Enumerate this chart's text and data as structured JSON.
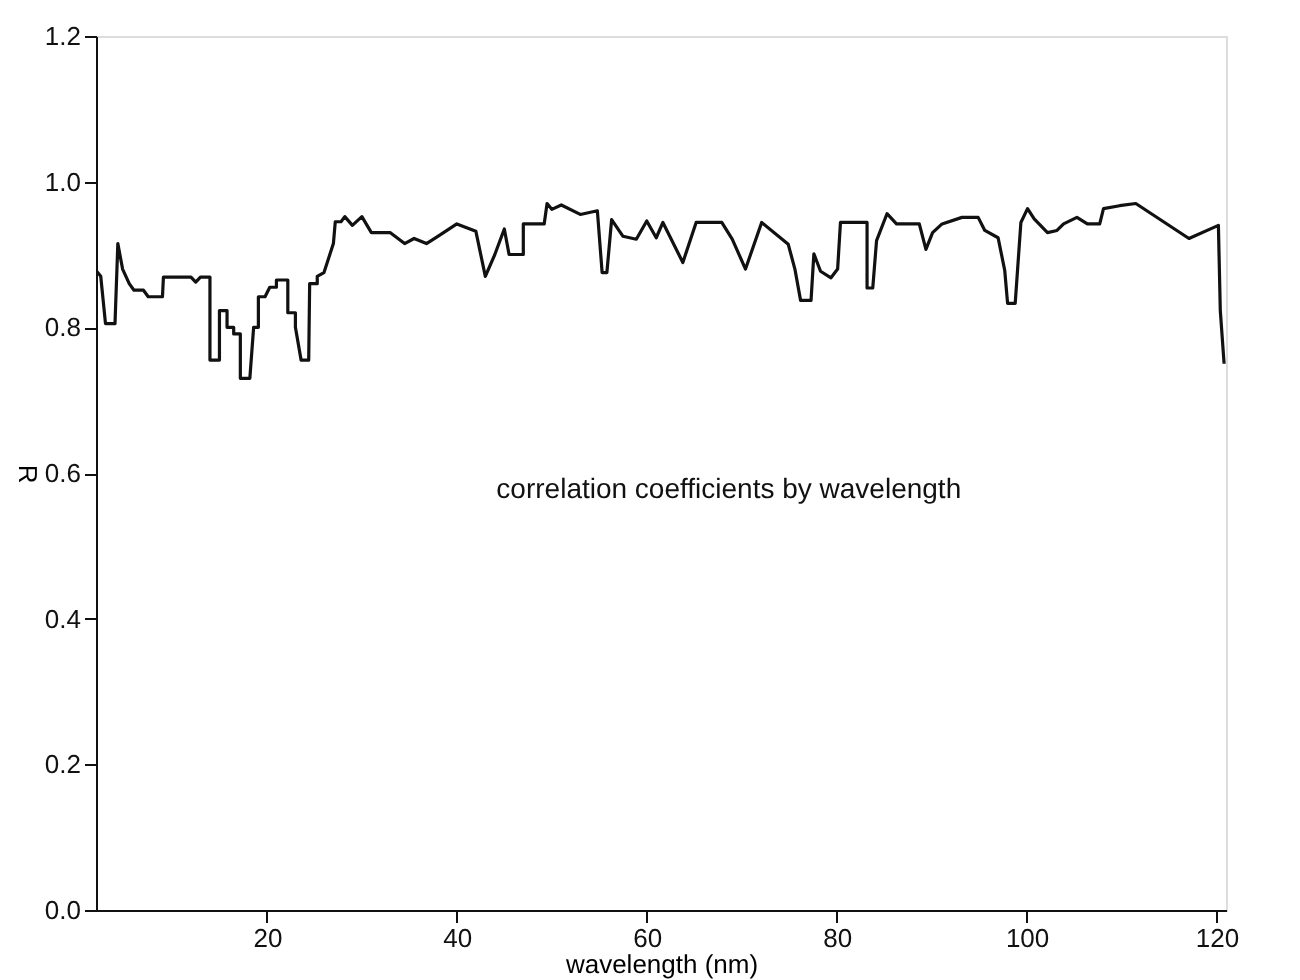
{
  "chart_data": {
    "type": "line",
    "xlabel": "wavelength (nm)",
    "ylabel": "R",
    "annotations": [
      "correlation coefficients by wavelength"
    ],
    "xlim": [
      2,
      121
    ],
    "ylim": [
      0,
      1.2
    ],
    "xticks": [
      20,
      40,
      60,
      80,
      100,
      120
    ],
    "yticks": [
      {
        "value": 0,
        "label": "0.0"
      },
      {
        "value": 0.2,
        "label": "0.2"
      },
      {
        "value": 0.4,
        "label": "0.4"
      },
      {
        "value": 0.6,
        "label": "0.6"
      },
      {
        "value": 0.8,
        "label": "0.8"
      },
      {
        "value": 1.0,
        "label": "1.0"
      },
      {
        "value": 1.2,
        "label": "1.2"
      }
    ],
    "grid": false,
    "marker": "none",
    "line_style": "solid",
    "series": [
      {
        "color": "#111111",
        "x": [
          2,
          2.5,
          3,
          4,
          4.3,
          4.8,
          5.5,
          6,
          7,
          7.5,
          9,
          9.1,
          12,
          12.5,
          13,
          14,
          14,
          15,
          15,
          15.8,
          15.8,
          16.5,
          16.5,
          17.2,
          17.2,
          18.2,
          18.6,
          19.1,
          19.1,
          19.8,
          20.3,
          21,
          21,
          22.2,
          22.2,
          23,
          23,
          23.6,
          24.4,
          24.5,
          25.3,
          25.3,
          26,
          27,
          27.2,
          27.8,
          28.2,
          29,
          30,
          31,
          33,
          34.5,
          35.5,
          36.8,
          38,
          40,
          42,
          43,
          44,
          45,
          45.5,
          47,
          47,
          49.2,
          49.5,
          50,
          51,
          53,
          54.8,
          55.3,
          55.8,
          56.3,
          57.5,
          58.9,
          60,
          61,
          61.7,
          63.8,
          65.2,
          67.9,
          69,
          70.4,
          72.1,
          74.9,
          75.6,
          76.2,
          77.3,
          77.6,
          78.3,
          79.4,
          80.1,
          80.4,
          83.2,
          83.2,
          83.8,
          84.2,
          85.3,
          86.3,
          88.7,
          89.4,
          90.1,
          91.1,
          93.2,
          94.9,
          95.6,
          97,
          97.7,
          98,
          98.8,
          99.4,
          100.1,
          100.8,
          102.2,
          103.2,
          103.9,
          105.3,
          106.4,
          107.7,
          108.1,
          109.8,
          111.5,
          117.1,
          120.2,
          120.4,
          120.8
        ],
        "values": [
          0.878,
          0.87,
          0.805,
          0.805,
          0.915,
          0.88,
          0.86,
          0.851,
          0.851,
          0.842,
          0.842,
          0.869,
          0.869,
          0.862,
          0.869,
          0.869,
          0.755,
          0.755,
          0.823,
          0.823,
          0.8,
          0.8,
          0.791,
          0.791,
          0.73,
          0.73,
          0.8,
          0.8,
          0.842,
          0.842,
          0.855,
          0.855,
          0.865,
          0.865,
          0.82,
          0.82,
          0.8,
          0.755,
          0.755,
          0.86,
          0.86,
          0.87,
          0.875,
          0.915,
          0.945,
          0.945,
          0.952,
          0.94,
          0.952,
          0.93,
          0.93,
          0.915,
          0.922,
          0.915,
          0.925,
          0.942,
          0.932,
          0.87,
          0.9,
          0.935,
          0.9,
          0.9,
          0.942,
          0.942,
          0.97,
          0.962,
          0.968,
          0.955,
          0.96,
          0.875,
          0.875,
          0.948,
          0.925,
          0.921,
          0.946,
          0.923,
          0.944,
          0.889,
          0.944,
          0.944,
          0.921,
          0.88,
          0.944,
          0.914,
          0.88,
          0.837,
          0.837,
          0.901,
          0.877,
          0.868,
          0.88,
          0.944,
          0.944,
          0.854,
          0.854,
          0.919,
          0.956,
          0.942,
          0.942,
          0.907,
          0.93,
          0.942,
          0.951,
          0.951,
          0.933,
          0.923,
          0.878,
          0.833,
          0.833,
          0.944,
          0.963,
          0.949,
          0.93,
          0.933,
          0.942,
          0.951,
          0.942,
          0.942,
          0.963,
          0.967,
          0.97,
          0.922,
          0.94,
          0.823,
          0.75
        ]
      }
    ]
  }
}
